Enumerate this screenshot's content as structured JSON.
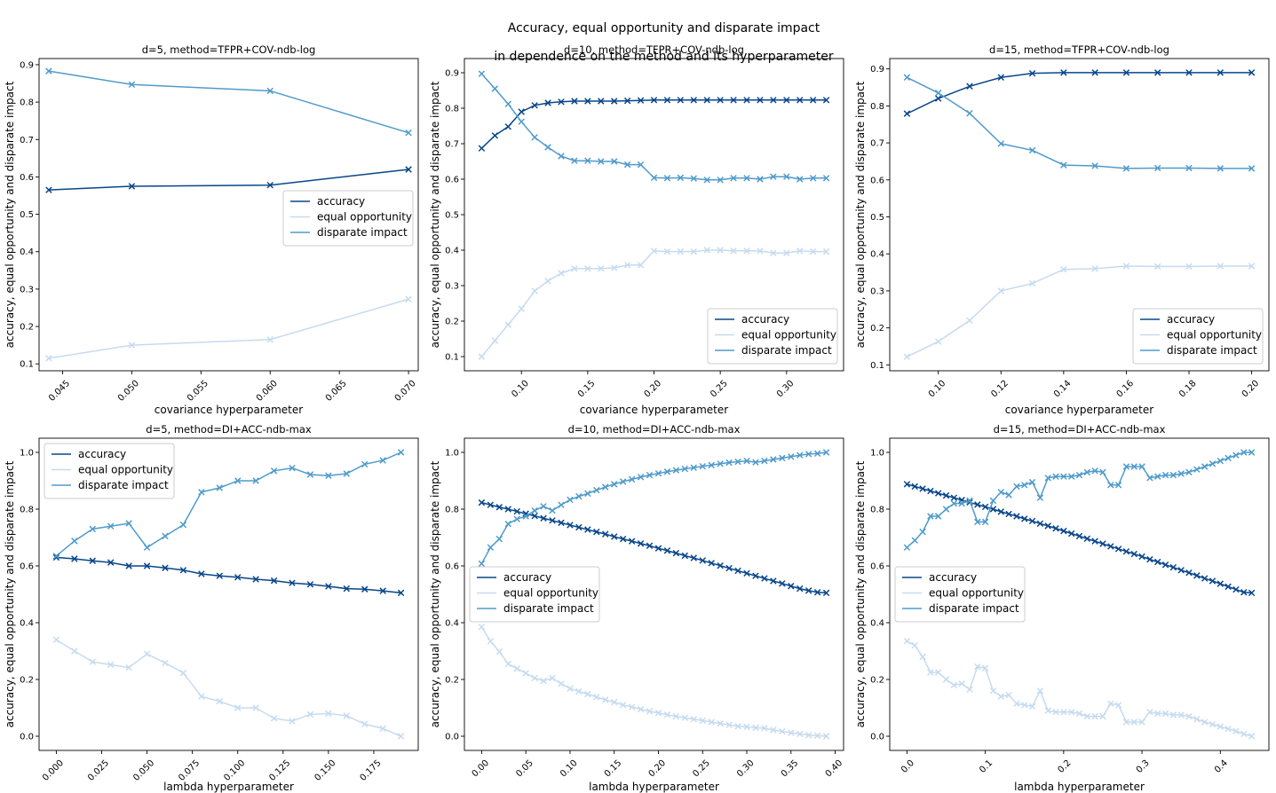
{
  "figure": {
    "title_line1": "Accuracy, equal opportunity and disparate impact",
    "title_line2": "in dependence on the method and its hyperparameter"
  },
  "colors": {
    "accuracy": "#08468a",
    "equal_opportunity": "#c6dbef",
    "disparate_impact": "#4f9bcb"
  },
  "chart_data": [
    {
      "type": "line",
      "title": "d=5, method=TFPR+COV-ndb-log",
      "xlabel": "covariance hyperparameter",
      "ylabel": "accuracy, equal opportunity and disparate impact",
      "xlim": [
        0.0433,
        0.0707
      ],
      "ylim": [
        0.0815,
        0.9165
      ],
      "xticks": [
        0.045,
        0.05,
        0.055,
        0.06,
        0.065,
        0.07
      ],
      "xtick_labels": [
        "0.045",
        "0.050",
        "0.055",
        "0.060",
        "0.065",
        "0.070"
      ],
      "yticks": [
        0.1,
        0.2,
        0.3,
        0.4,
        0.5,
        0.6,
        0.7,
        0.8,
        0.9
      ],
      "ytick_labels": [
        "0.1",
        "0.2",
        "0.3",
        "0.4",
        "0.5",
        "0.6",
        "0.7",
        "0.8",
        "0.9"
      ],
      "legend": "center-right",
      "x": [
        0.044,
        0.05,
        0.06,
        0.07
      ],
      "series": [
        {
          "name": "accuracy",
          "values": [
            0.565,
            0.575,
            0.578,
            0.62
          ]
        },
        {
          "name": "equal opportunity",
          "values": [
            0.115,
            0.15,
            0.165,
            0.273
          ]
        },
        {
          "name": "disparate impact",
          "values": [
            0.883,
            0.847,
            0.83,
            0.718
          ]
        }
      ]
    },
    {
      "type": "line",
      "title": "d=10, method=TFPR+COV-ndb-log",
      "xlabel": "covariance hyperparameter",
      "ylabel": "accuracy, equal opportunity and disparate impact",
      "xlim": [
        0.057,
        0.343
      ],
      "ylim": [
        0.06,
        0.94
      ],
      "xticks": [
        0.1,
        0.15,
        0.2,
        0.25,
        0.3
      ],
      "xtick_labels": [
        "0.10",
        "0.15",
        "0.20",
        "0.25",
        "0.30"
      ],
      "yticks": [
        0.1,
        0.2,
        0.3,
        0.4,
        0.5,
        0.6,
        0.7,
        0.8,
        0.9
      ],
      "ytick_labels": [
        "0.1",
        "0.2",
        "0.3",
        "0.4",
        "0.5",
        "0.6",
        "0.7",
        "0.8",
        "0.9"
      ],
      "legend": "lower-right",
      "x": [
        0.07,
        0.08,
        0.09,
        0.1,
        0.11,
        0.12,
        0.13,
        0.14,
        0.15,
        0.16,
        0.17,
        0.18,
        0.19,
        0.2,
        0.21,
        0.22,
        0.23,
        0.24,
        0.25,
        0.26,
        0.27,
        0.28,
        0.29,
        0.3,
        0.31,
        0.32,
        0.33
      ],
      "series": [
        {
          "name": "accuracy",
          "values": [
            0.687,
            0.723,
            0.748,
            0.79,
            0.808,
            0.815,
            0.818,
            0.82,
            0.82,
            0.82,
            0.82,
            0.821,
            0.822,
            0.823,
            0.823,
            0.823,
            0.823,
            0.823,
            0.823,
            0.823,
            0.823,
            0.823,
            0.823,
            0.823,
            0.823,
            0.823,
            0.823
          ]
        },
        {
          "name": "equal opportunity",
          "values": [
            0.1,
            0.145,
            0.19,
            0.235,
            0.285,
            0.313,
            0.335,
            0.348,
            0.348,
            0.348,
            0.35,
            0.358,
            0.358,
            0.398,
            0.396,
            0.396,
            0.396,
            0.4,
            0.4,
            0.398,
            0.398,
            0.398,
            0.392,
            0.392,
            0.398,
            0.396,
            0.396
          ]
        },
        {
          "name": "disparate impact",
          "values": [
            0.897,
            0.855,
            0.812,
            0.762,
            0.718,
            0.69,
            0.665,
            0.652,
            0.652,
            0.65,
            0.65,
            0.641,
            0.641,
            0.604,
            0.603,
            0.604,
            0.602,
            0.598,
            0.598,
            0.603,
            0.603,
            0.6,
            0.607,
            0.607,
            0.6,
            0.603,
            0.603
          ]
        }
      ]
    },
    {
      "type": "line",
      "title": "d=15, method=TFPR+COV-ndb-log",
      "xlabel": "covariance hyperparameter",
      "ylabel": "accuracy, equal opportunity and disparate impact",
      "xlim": [
        0.0845,
        0.2055
      ],
      "ylim": [
        0.084,
        0.928
      ],
      "xticks": [
        0.1,
        0.12,
        0.14,
        0.16,
        0.18,
        0.2
      ],
      "xtick_labels": [
        "0.10",
        "0.12",
        "0.14",
        "0.16",
        "0.18",
        "0.20"
      ],
      "yticks": [
        0.1,
        0.2,
        0.3,
        0.4,
        0.5,
        0.6,
        0.7,
        0.8,
        0.9
      ],
      "ytick_labels": [
        "0.1",
        "0.2",
        "0.3",
        "0.4",
        "0.5",
        "0.6",
        "0.7",
        "0.8",
        "0.9"
      ],
      "legend": "lower-right",
      "x": [
        0.09,
        0.1,
        0.11,
        0.12,
        0.13,
        0.14,
        0.15,
        0.16,
        0.17,
        0.18,
        0.19,
        0.2
      ],
      "series": [
        {
          "name": "accuracy",
          "values": [
            0.779,
            0.82,
            0.853,
            0.877,
            0.888,
            0.89,
            0.89,
            0.89,
            0.89,
            0.89,
            0.89,
            0.89
          ]
        },
        {
          "name": "equal opportunity",
          "values": [
            0.122,
            0.163,
            0.22,
            0.3,
            0.32,
            0.358,
            0.36,
            0.367,
            0.366,
            0.366,
            0.367,
            0.367
          ]
        },
        {
          "name": "disparate impact",
          "values": [
            0.877,
            0.835,
            0.78,
            0.698,
            0.68,
            0.64,
            0.638,
            0.631,
            0.632,
            0.632,
            0.631,
            0.631
          ]
        }
      ]
    },
    {
      "type": "line",
      "title": "d=5, method=DI+ACC-ndb-max",
      "xlabel": "lambda hyperparameter",
      "ylabel": "accuracy, equal opportunity and disparate impact",
      "xlim": [
        -0.0095,
        0.1995
      ],
      "ylim": [
        -0.05,
        1.05
      ],
      "xticks": [
        0,
        0.025,
        0.05,
        0.075,
        0.1,
        0.125,
        0.15,
        0.175
      ],
      "xtick_labels": [
        "0.000",
        "0.025",
        "0.050",
        "0.075",
        "0.100",
        "0.125",
        "0.150",
        "0.175"
      ],
      "yticks": [
        0,
        0.2,
        0.4,
        0.6,
        0.8,
        1.0
      ],
      "ytick_labels": [
        "0.0",
        "0.2",
        "0.4",
        "0.6",
        "0.8",
        "1.0"
      ],
      "legend": "top-left",
      "x": [
        0,
        0.01,
        0.02,
        0.03,
        0.04,
        0.05,
        0.06,
        0.07,
        0.08,
        0.09,
        0.1,
        0.11,
        0.12,
        0.13,
        0.14,
        0.15,
        0.16,
        0.17,
        0.18,
        0.19
      ],
      "series": [
        {
          "name": "accuracy",
          "values": [
            0.63,
            0.625,
            0.618,
            0.612,
            0.6,
            0.6,
            0.593,
            0.585,
            0.572,
            0.565,
            0.56,
            0.553,
            0.548,
            0.54,
            0.535,
            0.528,
            0.52,
            0.518,
            0.512,
            0.505
          ]
        },
        {
          "name": "equal opportunity",
          "values": [
            0.34,
            0.3,
            0.262,
            0.252,
            0.242,
            0.29,
            0.258,
            0.223,
            0.14,
            0.123,
            0.1,
            0.1,
            0.063,
            0.053,
            0.077,
            0.08,
            0.072,
            0.043,
            0.027,
            0.0
          ]
        },
        {
          "name": "disparate impact",
          "values": [
            0.635,
            0.688,
            0.73,
            0.74,
            0.75,
            0.665,
            0.705,
            0.745,
            0.86,
            0.875,
            0.9,
            0.9,
            0.935,
            0.945,
            0.922,
            0.918,
            0.925,
            0.958,
            0.972,
            1.0
          ]
        }
      ]
    },
    {
      "type": "line",
      "title": "d=10, method=DI+ACC-ndb-max",
      "xlabel": "lambda hyperparameter",
      "ylabel": "accuracy, equal opportunity and disparate impact",
      "xlim": [
        -0.0195,
        0.4095
      ],
      "ylim": [
        -0.05,
        1.05
      ],
      "xticks": [
        0,
        0.05,
        0.1,
        0.15,
        0.2,
        0.25,
        0.3,
        0.35,
        0.4
      ],
      "xtick_labels": [
        "0.00",
        "0.05",
        "0.10",
        "0.15",
        "0.20",
        "0.25",
        "0.30",
        "0.35",
        "0.40"
      ],
      "yticks": [
        0,
        0.2,
        0.4,
        0.6,
        0.8,
        1.0
      ],
      "ytick_labels": [
        "0.0",
        "0.2",
        "0.4",
        "0.6",
        "0.8",
        "1.0"
      ],
      "legend": "center-left",
      "x": [
        0,
        0.01,
        0.02,
        0.03,
        0.04,
        0.05,
        0.06,
        0.07,
        0.08,
        0.09,
        0.1,
        0.11,
        0.12,
        0.13,
        0.14,
        0.15,
        0.16,
        0.17,
        0.18,
        0.19,
        0.2,
        0.21,
        0.22,
        0.23,
        0.24,
        0.25,
        0.26,
        0.27,
        0.28,
        0.29,
        0.3,
        0.31,
        0.32,
        0.33,
        0.34,
        0.35,
        0.36,
        0.37,
        0.38,
        0.39
      ],
      "series": [
        {
          "name": "accuracy",
          "values": [
            0.823,
            0.815,
            0.807,
            0.8,
            0.792,
            0.784,
            0.776,
            0.768,
            0.76,
            0.752,
            0.744,
            0.736,
            0.728,
            0.72,
            0.712,
            0.703,
            0.695,
            0.687,
            0.679,
            0.671,
            0.662,
            0.654,
            0.645,
            0.636,
            0.628,
            0.619,
            0.61,
            0.601,
            0.592,
            0.583,
            0.574,
            0.565,
            0.556,
            0.547,
            0.538,
            0.529,
            0.52,
            0.513,
            0.507,
            0.505
          ]
        },
        {
          "name": "equal opportunity",
          "values": [
            0.385,
            0.335,
            0.298,
            0.255,
            0.238,
            0.222,
            0.205,
            0.195,
            0.205,
            0.185,
            0.168,
            0.158,
            0.148,
            0.138,
            0.128,
            0.12,
            0.11,
            0.103,
            0.095,
            0.088,
            0.082,
            0.076,
            0.07,
            0.065,
            0.06,
            0.055,
            0.05,
            0.045,
            0.04,
            0.035,
            0.033,
            0.03,
            0.028,
            0.022,
            0.017,
            0.012,
            0.008,
            0.004,
            0.002,
            0.0
          ]
        },
        {
          "name": "disparate impact",
          "values": [
            0.608,
            0.665,
            0.695,
            0.748,
            0.765,
            0.775,
            0.795,
            0.81,
            0.795,
            0.815,
            0.833,
            0.845,
            0.855,
            0.867,
            0.878,
            0.888,
            0.897,
            0.905,
            0.913,
            0.92,
            0.926,
            0.932,
            0.937,
            0.942,
            0.946,
            0.951,
            0.955,
            0.96,
            0.964,
            0.967,
            0.97,
            0.965,
            0.97,
            0.975,
            0.98,
            0.985,
            0.99,
            0.994,
            0.996,
            1.0
          ]
        }
      ]
    },
    {
      "type": "line",
      "title": "d=15, method=DI+ACC-ndb-max",
      "xlabel": "lambda hyperparameter",
      "ylabel": "accuracy, equal opportunity and disparate impact",
      "xlim": [
        -0.022,
        0.462
      ],
      "ylim": [
        -0.05,
        1.05
      ],
      "xticks": [
        0,
        0.1,
        0.2,
        0.3,
        0.4
      ],
      "xtick_labels": [
        "0.0",
        "0.1",
        "0.2",
        "0.3",
        "0.4"
      ],
      "yticks": [
        0,
        0.2,
        0.4,
        0.6,
        0.8,
        1.0
      ],
      "ytick_labels": [
        "0.0",
        "0.2",
        "0.4",
        "0.6",
        "0.8",
        "1.0"
      ],
      "legend": "center-left",
      "x": [
        0,
        0.01,
        0.02,
        0.03,
        0.04,
        0.05,
        0.06,
        0.07,
        0.08,
        0.09,
        0.1,
        0.11,
        0.12,
        0.13,
        0.14,
        0.15,
        0.16,
        0.17,
        0.18,
        0.19,
        0.2,
        0.21,
        0.22,
        0.23,
        0.24,
        0.25,
        0.26,
        0.27,
        0.28,
        0.29,
        0.3,
        0.31,
        0.32,
        0.33,
        0.34,
        0.35,
        0.36,
        0.37,
        0.38,
        0.39,
        0.4,
        0.41,
        0.42,
        0.43,
        0.44
      ],
      "series": [
        {
          "name": "accuracy",
          "values": [
            0.888,
            0.88,
            0.872,
            0.864,
            0.856,
            0.848,
            0.84,
            0.832,
            0.824,
            0.816,
            0.808,
            0.8,
            0.791,
            0.783,
            0.775,
            0.766,
            0.758,
            0.749,
            0.741,
            0.732,
            0.723,
            0.714,
            0.705,
            0.696,
            0.687,
            0.678,
            0.669,
            0.66,
            0.651,
            0.642,
            0.633,
            0.623,
            0.614,
            0.604,
            0.595,
            0.585,
            0.576,
            0.566,
            0.556,
            0.547,
            0.537,
            0.527,
            0.517,
            0.507,
            0.505
          ]
        },
        {
          "name": "equal opportunity",
          "values": [
            0.335,
            0.32,
            0.28,
            0.225,
            0.225,
            0.2,
            0.18,
            0.185,
            0.165,
            0.245,
            0.24,
            0.16,
            0.14,
            0.145,
            0.115,
            0.11,
            0.105,
            0.16,
            0.09,
            0.085,
            0.085,
            0.085,
            0.08,
            0.07,
            0.07,
            0.07,
            0.115,
            0.11,
            0.05,
            0.05,
            0.05,
            0.085,
            0.08,
            0.08,
            0.075,
            0.075,
            0.07,
            0.06,
            0.05,
            0.042,
            0.034,
            0.026,
            0.018,
            0.008,
            0.0
          ]
        },
        {
          "name": "disparate impact",
          "values": [
            0.665,
            0.69,
            0.72,
            0.775,
            0.775,
            0.8,
            0.82,
            0.82,
            0.83,
            0.755,
            0.755,
            0.83,
            0.86,
            0.85,
            0.88,
            0.885,
            0.895,
            0.84,
            0.91,
            0.915,
            0.915,
            0.915,
            0.92,
            0.93,
            0.935,
            0.93,
            0.885,
            0.885,
            0.95,
            0.95,
            0.95,
            0.91,
            0.915,
            0.92,
            0.92,
            0.925,
            0.93,
            0.94,
            0.95,
            0.96,
            0.97,
            0.98,
            0.99,
            1.0,
            1.0
          ]
        }
      ]
    }
  ]
}
